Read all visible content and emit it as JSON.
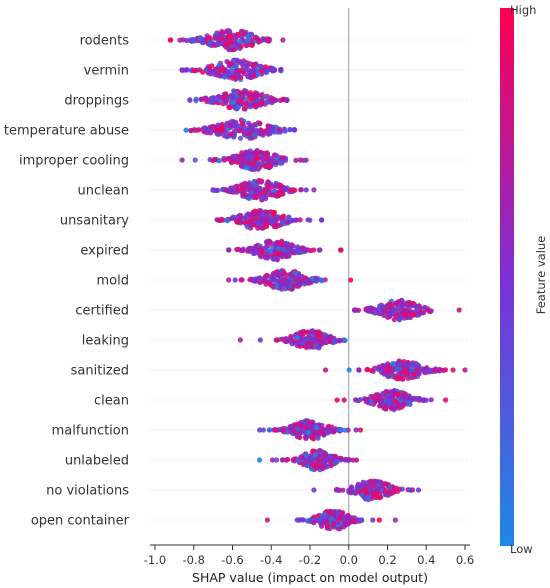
{
  "colors": {
    "low": "#1e88e5",
    "high": "#ff0052",
    "zero_line": "#999999",
    "grid": "#cccccc"
  },
  "chart_data": {
    "type": "scatter",
    "subtype": "shap-beeswarm",
    "title": "",
    "xlabel": "SHAP value (impact on model output)",
    "ylabel": "",
    "xlim": [
      -1.05,
      0.68
    ],
    "xticks": [
      "-1.0",
      "-0.8",
      "-0.6",
      "-0.4",
      "-0.2",
      "0.0",
      "0.2",
      "0.4",
      "0.6"
    ],
    "xtick_values": [
      -1.0,
      -0.8,
      -0.6,
      -0.4,
      -0.2,
      0.0,
      0.2,
      0.4,
      0.6
    ],
    "colorbar": {
      "title": "Feature value",
      "high_label": "High",
      "low_label": "Low"
    },
    "features": [
      {
        "name": "rodents",
        "center": -0.6,
        "spread": 0.11,
        "min": -0.92,
        "max": -0.34
      },
      {
        "name": "vermin",
        "center": -0.58,
        "spread": 0.11,
        "min": -0.86,
        "max": -0.35
      },
      {
        "name": "droppings",
        "center": -0.56,
        "spread": 0.11,
        "min": -0.82,
        "max": -0.32
      },
      {
        "name": "temperature abuse",
        "center": -0.55,
        "spread": 0.12,
        "min": -0.84,
        "max": -0.28
      },
      {
        "name": "improper cooling",
        "center": -0.48,
        "spread": 0.1,
        "min": -0.86,
        "max": -0.22
      },
      {
        "name": "unclean",
        "center": -0.46,
        "spread": 0.1,
        "min": -0.7,
        "max": -0.18
      },
      {
        "name": "unsanitary",
        "center": -0.45,
        "spread": 0.1,
        "min": -0.68,
        "max": -0.14
      },
      {
        "name": "expired",
        "center": -0.38,
        "spread": 0.09,
        "min": -0.62,
        "max": -0.04
      },
      {
        "name": "mold",
        "center": -0.32,
        "spread": 0.09,
        "min": -0.62,
        "max": 0.01
      },
      {
        "name": "certified",
        "center": 0.26,
        "spread": 0.09,
        "min": 0.03,
        "max": 0.57
      },
      {
        "name": "leaking",
        "center": -0.2,
        "spread": 0.08,
        "min": -0.56,
        "max": -0.02
      },
      {
        "name": "sanitized",
        "center": 0.28,
        "spread": 0.09,
        "min": -0.12,
        "max": 0.6
      },
      {
        "name": "clean",
        "center": 0.22,
        "spread": 0.08,
        "min": -0.06,
        "max": 0.5
      },
      {
        "name": "malfunction",
        "center": -0.2,
        "spread": 0.08,
        "min": -0.46,
        "max": 0.06
      },
      {
        "name": "unlabeled",
        "center": -0.16,
        "spread": 0.07,
        "min": -0.46,
        "max": 0.04
      },
      {
        "name": "no violations",
        "center": 0.12,
        "spread": 0.08,
        "min": -0.18,
        "max": 0.36
      },
      {
        "name": "open container",
        "center": -0.08,
        "spread": 0.07,
        "min": -0.42,
        "max": 0.24
      }
    ]
  }
}
